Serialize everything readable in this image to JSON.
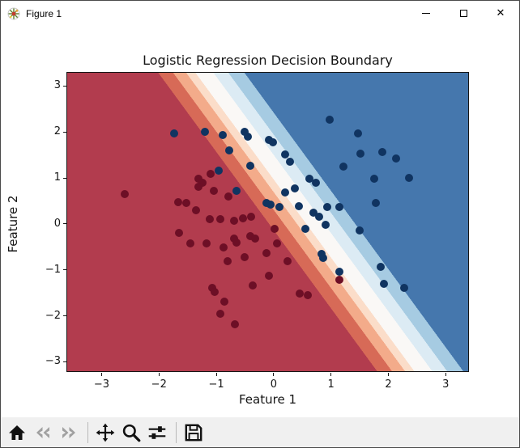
{
  "window": {
    "title": "Figure 1",
    "controls": {
      "minimize": "minimize-window",
      "maximize": "maximize-window",
      "close_glyph": "✕"
    }
  },
  "chart_data": {
    "type": "scatter",
    "title": "Logistic Regression Decision Boundary",
    "xlabel": "Feature 1",
    "ylabel": "Feature 2",
    "xlim": [
      -3.6,
      3.42
    ],
    "ylim": [
      -3.24,
      3.29
    ],
    "xticks": [
      -3,
      -2,
      -1,
      0,
      1,
      2,
      3
    ],
    "yticks": [
      3,
      2,
      1,
      0,
      -1,
      -2,
      -3
    ],
    "grid": false,
    "legend": "none",
    "background": "contourf of predicted probability, RdBu colormap, straight diagonal decision boundary",
    "boundary": {
      "description": "white p=0.5 band runs from approx (-1.2, 3.3) to (2.6, -3.2); red region lower-left, blue region upper-right",
      "angle_deg": 53.8,
      "bands": [
        {
          "color": "#b23c4e",
          "from": 0,
          "to": 50.0
        },
        {
          "color": "#d76a57",
          "from": 50.0,
          "to": 52.4
        },
        {
          "color": "#f3ab8a",
          "from": 52.4,
          "to": 54.5
        },
        {
          "color": "#fbddc9",
          "from": 54.5,
          "to": 56.0
        },
        {
          "color": "#faf8f6",
          "from": 56.0,
          "to": 58.9
        },
        {
          "color": "#dcebf4",
          "from": 58.9,
          "to": 61.3
        },
        {
          "color": "#a6cbe2",
          "from": 61.3,
          "to": 63.9
        },
        {
          "color": "#4577ad",
          "from": 63.9,
          "to": 100
        }
      ]
    },
    "series": [
      {
        "name": "class-0-red",
        "color": "#6d0f26",
        "points": [
          [
            -2.6,
            0.65
          ],
          [
            -1.1,
            1.09
          ],
          [
            -1.31,
            0.99
          ],
          [
            -1.24,
            0.9
          ],
          [
            -1.31,
            0.81
          ],
          [
            -1.05,
            0.72
          ],
          [
            -0.79,
            0.6
          ],
          [
            -1.66,
            0.48
          ],
          [
            -1.52,
            0.46
          ],
          [
            -1.36,
            0.3
          ],
          [
            -1.12,
            0.11
          ],
          [
            -0.93,
            0.11
          ],
          [
            -0.69,
            0.07
          ],
          [
            -0.53,
            0.12
          ],
          [
            -0.39,
            0.16
          ],
          [
            0.01,
            -0.11
          ],
          [
            -0.69,
            -0.31
          ],
          [
            -0.65,
            -0.4
          ],
          [
            -0.88,
            -0.51
          ],
          [
            -0.8,
            -0.81
          ],
          [
            -0.51,
            -0.72
          ],
          [
            -0.37,
            -1.34
          ],
          [
            -0.13,
            -0.63
          ],
          [
            0.24,
            -0.81
          ],
          [
            0.45,
            -1.51
          ],
          [
            0.59,
            -1.55
          ],
          [
            -0.08,
            -1.13
          ],
          [
            -1.07,
            -1.39
          ],
          [
            -1.03,
            -1.48
          ],
          [
            -0.86,
            -1.69
          ],
          [
            -0.93,
            -1.95
          ],
          [
            -0.68,
            -2.18
          ],
          [
            -1.65,
            -0.19
          ],
          [
            -1.45,
            -0.42
          ],
          [
            -1.17,
            -0.42
          ],
          [
            -0.41,
            -0.26
          ],
          [
            -0.32,
            -0.32
          ],
          [
            0.06,
            -0.42
          ],
          [
            1.14,
            -1.21
          ]
        ]
      },
      {
        "name": "class-1-blue",
        "color": "#103461",
        "points": [
          [
            -1.74,
            1.97
          ],
          [
            -1.2,
            2.0
          ],
          [
            -0.89,
            1.94
          ],
          [
            -0.5,
            2.0
          ],
          [
            -0.45,
            1.9
          ],
          [
            -0.08,
            1.83
          ],
          [
            -0.01,
            1.78
          ],
          [
            0.97,
            2.27
          ],
          [
            -0.77,
            1.6
          ],
          [
            0.2,
            1.51
          ],
          [
            0.29,
            1.36
          ],
          [
            1.47,
            1.97
          ],
          [
            1.51,
            1.53
          ],
          [
            1.89,
            1.57
          ],
          [
            2.13,
            1.43
          ],
          [
            1.21,
            1.25
          ],
          [
            -0.41,
            1.27
          ],
          [
            -0.96,
            1.16
          ],
          [
            0.62,
            0.99
          ],
          [
            0.73,
            0.9
          ],
          [
            1.75,
            0.99
          ],
          [
            2.36,
            1.0
          ],
          [
            0.2,
            0.69
          ],
          [
            0.37,
            0.77
          ],
          [
            -0.65,
            0.72
          ],
          [
            1.78,
            0.46
          ],
          [
            -0.13,
            0.46
          ],
          [
            -0.06,
            0.42
          ],
          [
            0.1,
            0.37
          ],
          [
            0.44,
            0.39
          ],
          [
            0.69,
            0.25
          ],
          [
            0.79,
            0.16
          ],
          [
            0.93,
            0.37
          ],
          [
            1.14,
            0.37
          ],
          [
            0.9,
            -0.02
          ],
          [
            0.55,
            -0.11
          ],
          [
            1.5,
            -0.14
          ],
          [
            0.83,
            -0.66
          ],
          [
            0.87,
            -0.74
          ],
          [
            1.14,
            -1.04
          ],
          [
            1.86,
            -0.93
          ],
          [
            1.92,
            -1.3
          ],
          [
            2.27,
            -1.39
          ]
        ]
      }
    ]
  },
  "toolbar": {
    "buttons": [
      {
        "name": "home",
        "enabled": true
      },
      {
        "name": "back",
        "enabled": false
      },
      {
        "name": "forward",
        "enabled": false
      },
      {
        "name": "pan",
        "enabled": true
      },
      {
        "name": "zoom-to-rect",
        "enabled": true
      },
      {
        "name": "configure-subplots",
        "enabled": true
      },
      {
        "name": "save-figure",
        "enabled": true
      }
    ]
  }
}
